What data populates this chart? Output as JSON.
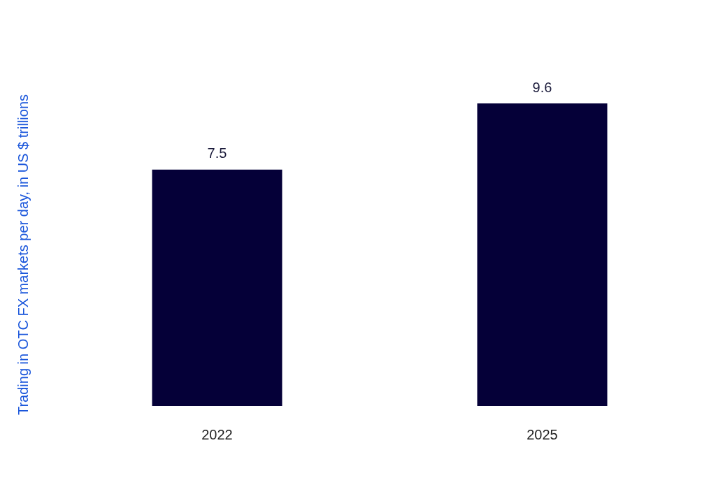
{
  "chart_data": {
    "type": "bar",
    "ylabel": "Trading in OTC FX markets per day, in US $ trillions",
    "categories": [
      "2022",
      "2025"
    ],
    "values": [
      7.5,
      9.6
    ],
    "color": "#050038",
    "data_labels": true
  }
}
